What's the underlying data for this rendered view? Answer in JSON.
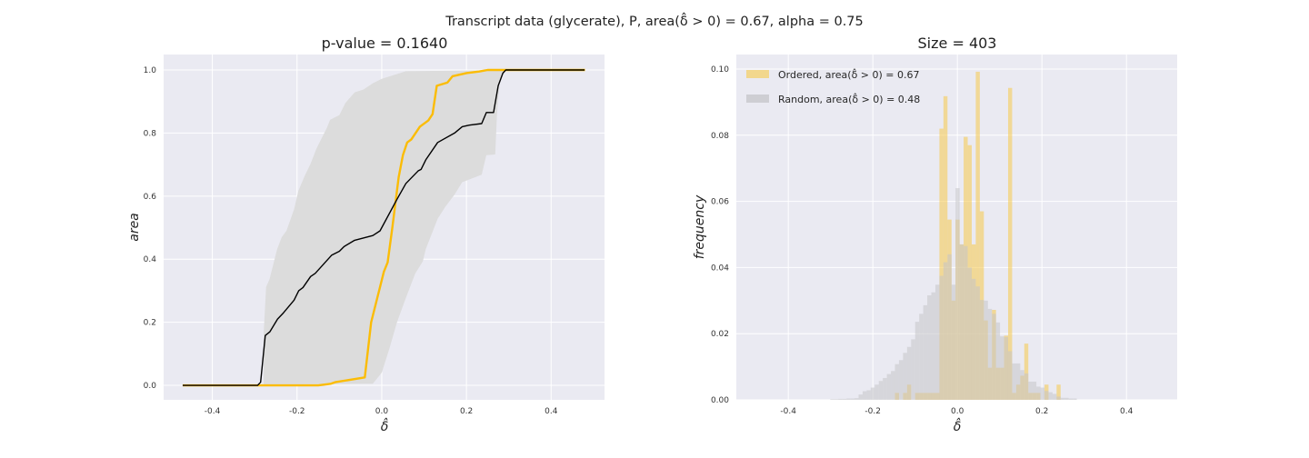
{
  "suptitle": "Transcript data (glycerate), P, area(δ̂ > 0) = 0.67, alpha = 0.75",
  "chart_data": [
    {
      "type": "line",
      "title": "p-value = 0.1640",
      "xlabel": "δ̂",
      "ylabel": "area",
      "xlim": [
        -0.515,
        0.526
      ],
      "ylim": [
        -0.046,
        1.049
      ],
      "xticks": [
        "-0.4",
        "-0.2",
        "0.0",
        "0.2",
        "0.4"
      ],
      "xtick_values": [
        -0.4,
        -0.2,
        0.0,
        0.2,
        0.4
      ],
      "yticks": [
        "0.0",
        "0.2",
        "0.4",
        "0.6",
        "0.8",
        "1.0"
      ],
      "ytick_values": [
        0,
        0.2,
        0.4,
        0.6,
        0.8,
        1.0
      ],
      "grid": true,
      "colors": {
        "ordered": "#fbbc05",
        "random_mean": "#000000",
        "band": "#dcdcdc",
        "bg": "#eaeaf2"
      },
      "band_upper": [
        [
          -0.47,
          0
        ],
        [
          -0.279,
          0
        ],
        [
          -0.279,
          0.16
        ],
        [
          -0.273,
          0.312
        ],
        [
          -0.265,
          0.336
        ],
        [
          -0.247,
          0.432
        ],
        [
          -0.236,
          0.47
        ],
        [
          -0.225,
          0.49
        ],
        [
          -0.207,
          0.558
        ],
        [
          -0.197,
          0.616
        ],
        [
          -0.182,
          0.664
        ],
        [
          -0.168,
          0.703
        ],
        [
          -0.154,
          0.751
        ],
        [
          -0.129,
          0.818
        ],
        [
          -0.122,
          0.842
        ],
        [
          -0.1,
          0.857
        ],
        [
          -0.086,
          0.895
        ],
        [
          -0.064,
          0.929
        ],
        [
          -0.043,
          0.938
        ],
        [
          -0.021,
          0.958
        ],
        [
          0,
          0.972
        ],
        [
          0.057,
          0.996
        ],
        [
          0.293,
          1.0
        ],
        [
          0.48,
          1.0
        ]
      ],
      "band_lower": [
        [
          -0.47,
          0
        ],
        [
          -0.021,
          0.005
        ],
        [
          0,
          0.04
        ],
        [
          0.018,
          0.116
        ],
        [
          0.036,
          0.2
        ],
        [
          0.057,
          0.277
        ],
        [
          0.079,
          0.354
        ],
        [
          0.097,
          0.393
        ],
        [
          0.104,
          0.432
        ],
        [
          0.132,
          0.528
        ],
        [
          0.15,
          0.566
        ],
        [
          0.172,
          0.605
        ],
        [
          0.19,
          0.644
        ],
        [
          0.236,
          0.668
        ],
        [
          0.247,
          0.73
        ],
        [
          0.268,
          0.732
        ],
        [
          0.272,
          0.856
        ],
        [
          0.279,
          0.972
        ],
        [
          0.293,
          1.0
        ],
        [
          0.48,
          1.0
        ]
      ],
      "series": [
        {
          "name": "Random (mean)",
          "points": [
            [
              -0.47,
              0
            ],
            [
              -0.293,
              0
            ],
            [
              -0.286,
              0.01
            ],
            [
              -0.275,
              0.158
            ],
            [
              -0.264,
              0.17
            ],
            [
              -0.246,
              0.21
            ],
            [
              -0.232,
              0.23
            ],
            [
              -0.207,
              0.27
            ],
            [
              -0.196,
              0.3
            ],
            [
              -0.186,
              0.31
            ],
            [
              -0.168,
              0.345
            ],
            [
              -0.157,
              0.355
            ],
            [
              -0.118,
              0.413
            ],
            [
              -0.1,
              0.425
            ],
            [
              -0.089,
              0.44
            ],
            [
              -0.064,
              0.46
            ],
            [
              -0.021,
              0.475
            ],
            [
              -0.004,
              0.49
            ],
            [
              0.036,
              0.59
            ],
            [
              0.057,
              0.64
            ],
            [
              0.086,
              0.68
            ],
            [
              0.093,
              0.685
            ],
            [
              0.104,
              0.715
            ],
            [
              0.132,
              0.77
            ],
            [
              0.172,
              0.8
            ],
            [
              0.19,
              0.82
            ],
            [
              0.207,
              0.825
            ],
            [
              0.236,
              0.83
            ],
            [
              0.247,
              0.865
            ],
            [
              0.264,
              0.865
            ],
            [
              0.275,
              0.95
            ],
            [
              0.286,
              0.99
            ],
            [
              0.293,
              1.0
            ],
            [
              0.479,
              1.0
            ]
          ]
        },
        {
          "name": "Ordered",
          "points": [
            [
              -0.47,
              0
            ],
            [
              -0.15,
              0
            ],
            [
              -0.12,
              0.005
            ],
            [
              -0.11,
              0.01
            ],
            [
              -0.04,
              0.025
            ],
            [
              -0.025,
              0.2
            ],
            [
              -0.01,
              0.28
            ],
            [
              0.005,
              0.36
            ],
            [
              0.014,
              0.39
            ],
            [
              0.025,
              0.5
            ],
            [
              0.04,
              0.66
            ],
            [
              0.05,
              0.73
            ],
            [
              0.06,
              0.77
            ],
            [
              0.07,
              0.78
            ],
            [
              0.09,
              0.82
            ],
            [
              0.11,
              0.84
            ],
            [
              0.12,
              0.86
            ],
            [
              0.13,
              0.95
            ],
            [
              0.155,
              0.96
            ],
            [
              0.167,
              0.98
            ],
            [
              0.2,
              0.99
            ],
            [
              0.23,
              0.995
            ],
            [
              0.25,
              1.0
            ],
            [
              0.48,
              1.0
            ]
          ]
        }
      ]
    },
    {
      "type": "bar",
      "subtype": "histogram",
      "title": "Size = 403",
      "xlabel": "δ̂",
      "ylabel": "frequency",
      "xlim": [
        -0.523,
        0.52
      ],
      "ylim": [
        0,
        0.1044
      ],
      "xticks": [
        "-0.4",
        "-0.2",
        "0.0",
        "0.2",
        "0.4"
      ],
      "xtick_values": [
        -0.4,
        -0.2,
        0.0,
        0.2,
        0.4
      ],
      "yticks": [
        "0.00",
        "0.02",
        "0.04",
        "0.06",
        "0.08",
        "0.10"
      ],
      "ytick_values": [
        0,
        0.02,
        0.04,
        0.06,
        0.08,
        0.1
      ],
      "grid": true,
      "legend_position": "top-left",
      "bin_width": 0.00956,
      "bin_origin": -0.0043,
      "series": [
        {
          "name": "Ordered, area(δ̂ > 0) = 0.67",
          "color": "#f6c94a",
          "first_bin": -15,
          "values": [
            0.0021,
            0,
            0.0021,
            0.0046,
            0,
            0.0021,
            0.0021,
            0.0021,
            0.0021,
            0.0021,
            0.0021,
            0.082,
            0.0918,
            0.0545,
            0.03,
            0.0545,
            0.047,
            0.0795,
            0.077,
            0.047,
            0.0992,
            0.057,
            0.024,
            0.0097,
            0.0272,
            0.0097,
            0.0097,
            0.0194,
            0.0943,
            0.0021,
            0.0046,
            0.0073,
            0.017,
            0.0021,
            0.0021,
            0.0021,
            0,
            0.0046,
            0,
            0,
            0.0046
          ]
        },
        {
          "name": "Random, area(δ̂ > 0) = 0.48",
          "color": "#c4c4c8",
          "first_bin": -31,
          "values": [
            0.0002,
            0.0002,
            0.0003,
            0.0003,
            0.0004,
            0.0004,
            0.0005,
            0.0016,
            0.0026,
            0.0029,
            0.0037,
            0.0046,
            0.0057,
            0.0066,
            0.0078,
            0.0087,
            0.0108,
            0.012,
            0.0142,
            0.016,
            0.0183,
            0.0236,
            0.026,
            0.0286,
            0.0316,
            0.0325,
            0.0348,
            0.0375,
            0.0416,
            0.044,
            0.0348,
            0.064,
            0.047,
            0.0465,
            0.04,
            0.0366,
            0.0343,
            0.0302,
            0.03,
            0.0275,
            0.026,
            0.0234,
            0.0192,
            0.019,
            0.0147,
            0.011,
            0.011,
            0.009,
            0.008,
            0.0055,
            0.0055,
            0.004,
            0.0037,
            0.0027,
            0.0023,
            0.0018,
            0.001,
            0.0006,
            0.0006,
            0.0004,
            0.0004
          ]
        }
      ]
    }
  ]
}
